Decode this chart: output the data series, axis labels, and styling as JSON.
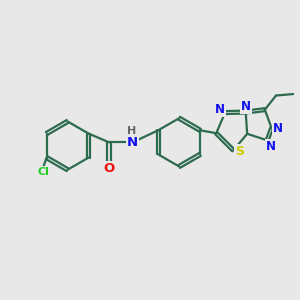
{
  "bg_color": "#e8e8e8",
  "bond_color": "#2d6b4f",
  "bond_width": 1.6,
  "dbo": 0.05,
  "atom_colors": {
    "N": "#1010ee",
    "O": "#ee1010",
    "S": "#cccc00",
    "Cl": "#22cc22",
    "H": "#666666",
    "C": "#2d6b4f"
  },
  "fs": 9.5,
  "sf": 8.0
}
